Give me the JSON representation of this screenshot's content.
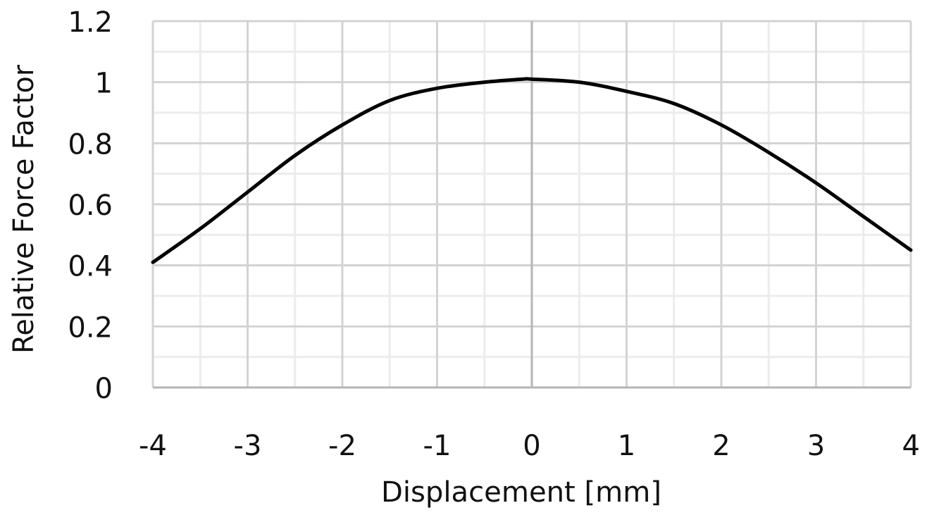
{
  "chart_data": {
    "type": "line",
    "title": "",
    "xlabel": "Displacement  [mm]",
    "ylabel": "Relative Force Factor",
    "xlim": [
      -4,
      4
    ],
    "ylim": [
      0,
      1.2
    ],
    "x_ticks": [
      "-4",
      "-3",
      "-2",
      "-1",
      "0",
      "1",
      "2",
      "3",
      "4"
    ],
    "y_ticks": [
      "0",
      "0.2",
      "0.4",
      "0.6",
      "0.8",
      "1",
      "1.2"
    ],
    "x_major_step": 1,
    "x_minor_step": 0.5,
    "y_major_step": 0.2,
    "y_minor_step": 0.1,
    "grid": true,
    "legend": "none",
    "series": [
      {
        "x": [
          -4,
          -3.5,
          -3,
          -2.5,
          -2,
          -1.5,
          -1,
          -0.5,
          -0.1,
          0,
          0.5,
          1,
          1.5,
          2,
          2.5,
          3,
          3.5,
          4
        ],
        "y": [
          0.41,
          0.52,
          0.64,
          0.76,
          0.86,
          0.94,
          0.98,
          1.0,
          1.01,
          1.01,
          1.0,
          0.97,
          0.93,
          0.86,
          0.77,
          0.67,
          0.56,
          0.45
        ],
        "color": "#000000"
      }
    ]
  },
  "colors": {
    "major_grid": "#d3d3d3",
    "minor_grid": "#ececec",
    "zero_line": "#b5b5b5",
    "curve": "#000000",
    "text": "#111111"
  }
}
